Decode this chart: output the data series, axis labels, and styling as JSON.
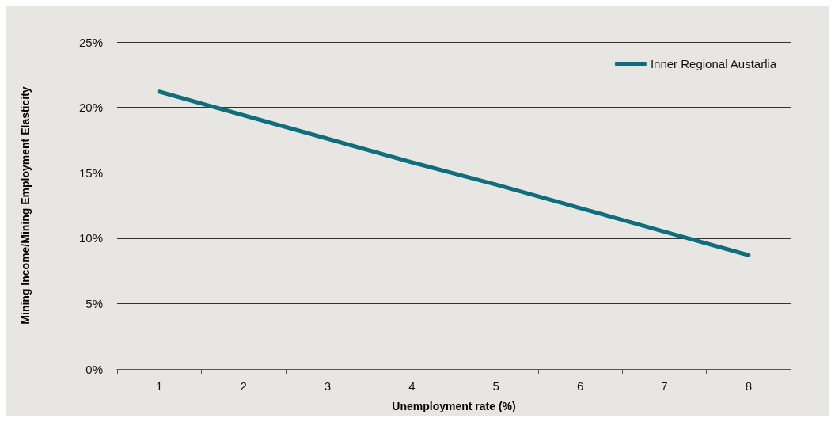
{
  "chart_data": {
    "type": "line",
    "xlabel": "Unemployment rate (%)",
    "ylabel": "Mining Income/Mining Employment Elasticity",
    "categories": [
      "1",
      "2",
      "3",
      "4",
      "5",
      "6",
      "7",
      "8"
    ],
    "series": [
      {
        "name": "Inner Regional Austarlia",
        "color": "#0f6e7b",
        "values": [
          21.2,
          19.4,
          17.6,
          15.8,
          14.1,
          12.3,
          10.5,
          8.7
        ]
      }
    ],
    "ylim": [
      0,
      25
    ],
    "yticks": [
      {
        "value": 0,
        "label": "0%"
      },
      {
        "value": 5,
        "label": "5%"
      },
      {
        "value": 10,
        "label": "10%"
      },
      {
        "value": 15,
        "label": "15%"
      },
      {
        "value": 20,
        "label": "20%"
      },
      {
        "value": 25,
        "label": "25%"
      }
    ],
    "grid": "y",
    "legend": "top right",
    "marker": "none",
    "line_style": "solid"
  }
}
